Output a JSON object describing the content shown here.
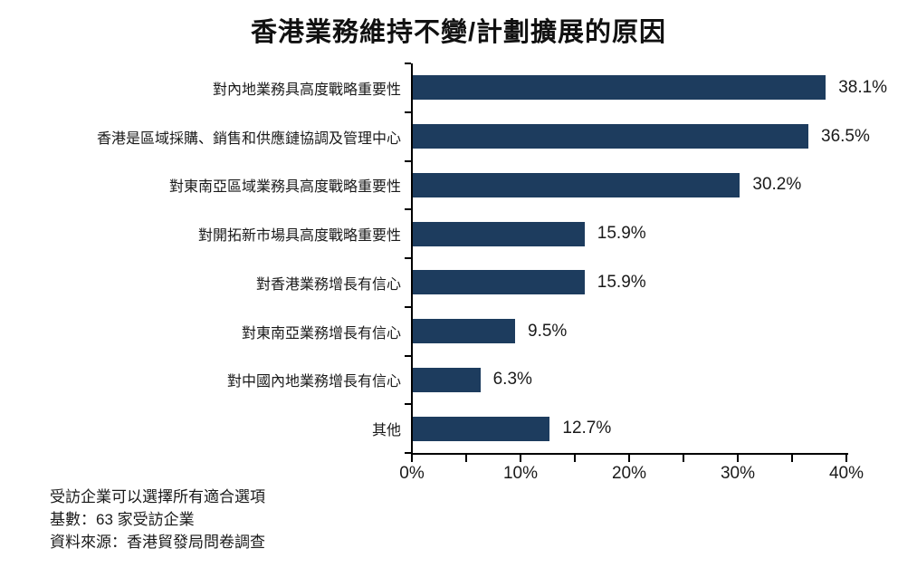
{
  "chart_data": {
    "type": "bar",
    "orientation": "horizontal",
    "title": "香港業務維持不變/計劃擴展的原因",
    "categories": [
      "對內地業務具高度戰略重要性",
      "香港是區域採購、銷售和供應鏈協調及管理中心",
      "對東南亞區域業務具高度戰略重要性",
      "對開拓新市場具高度戰略重要性",
      "對香港業務增長有信心",
      "對東南亞業務增長有信心",
      "對中國內地業務增長有信心",
      "其他"
    ],
    "values": [
      38.1,
      36.5,
      30.2,
      15.9,
      15.9,
      9.5,
      6.3,
      12.7
    ],
    "value_labels": [
      "38.1%",
      "36.5%",
      "30.2%",
      "15.9%",
      "15.9%",
      "9.5%",
      "6.3%",
      "12.7%"
    ],
    "xlabel": "",
    "ylabel": "",
    "xlim": [
      0,
      40
    ],
    "x_major_ticks": [
      {
        "value": 0,
        "label": "0%"
      },
      {
        "value": 10,
        "label": "10%"
      },
      {
        "value": 20,
        "label": "20%"
      },
      {
        "value": 30,
        "label": "30%"
      },
      {
        "value": 40,
        "label": "40%"
      }
    ],
    "x_minor_ticks": [
      5,
      15,
      25,
      35
    ],
    "grid": false,
    "legend": false,
    "bar_color": "#1d3c5e",
    "axis_color": "#000000",
    "text_color": "#1a1a1a"
  },
  "footnotes": [
    "受訪企業可以選擇所有適合選項",
    "基數：63 家受訪企業",
    "資料來源：香港貿發局問卷調查"
  ]
}
